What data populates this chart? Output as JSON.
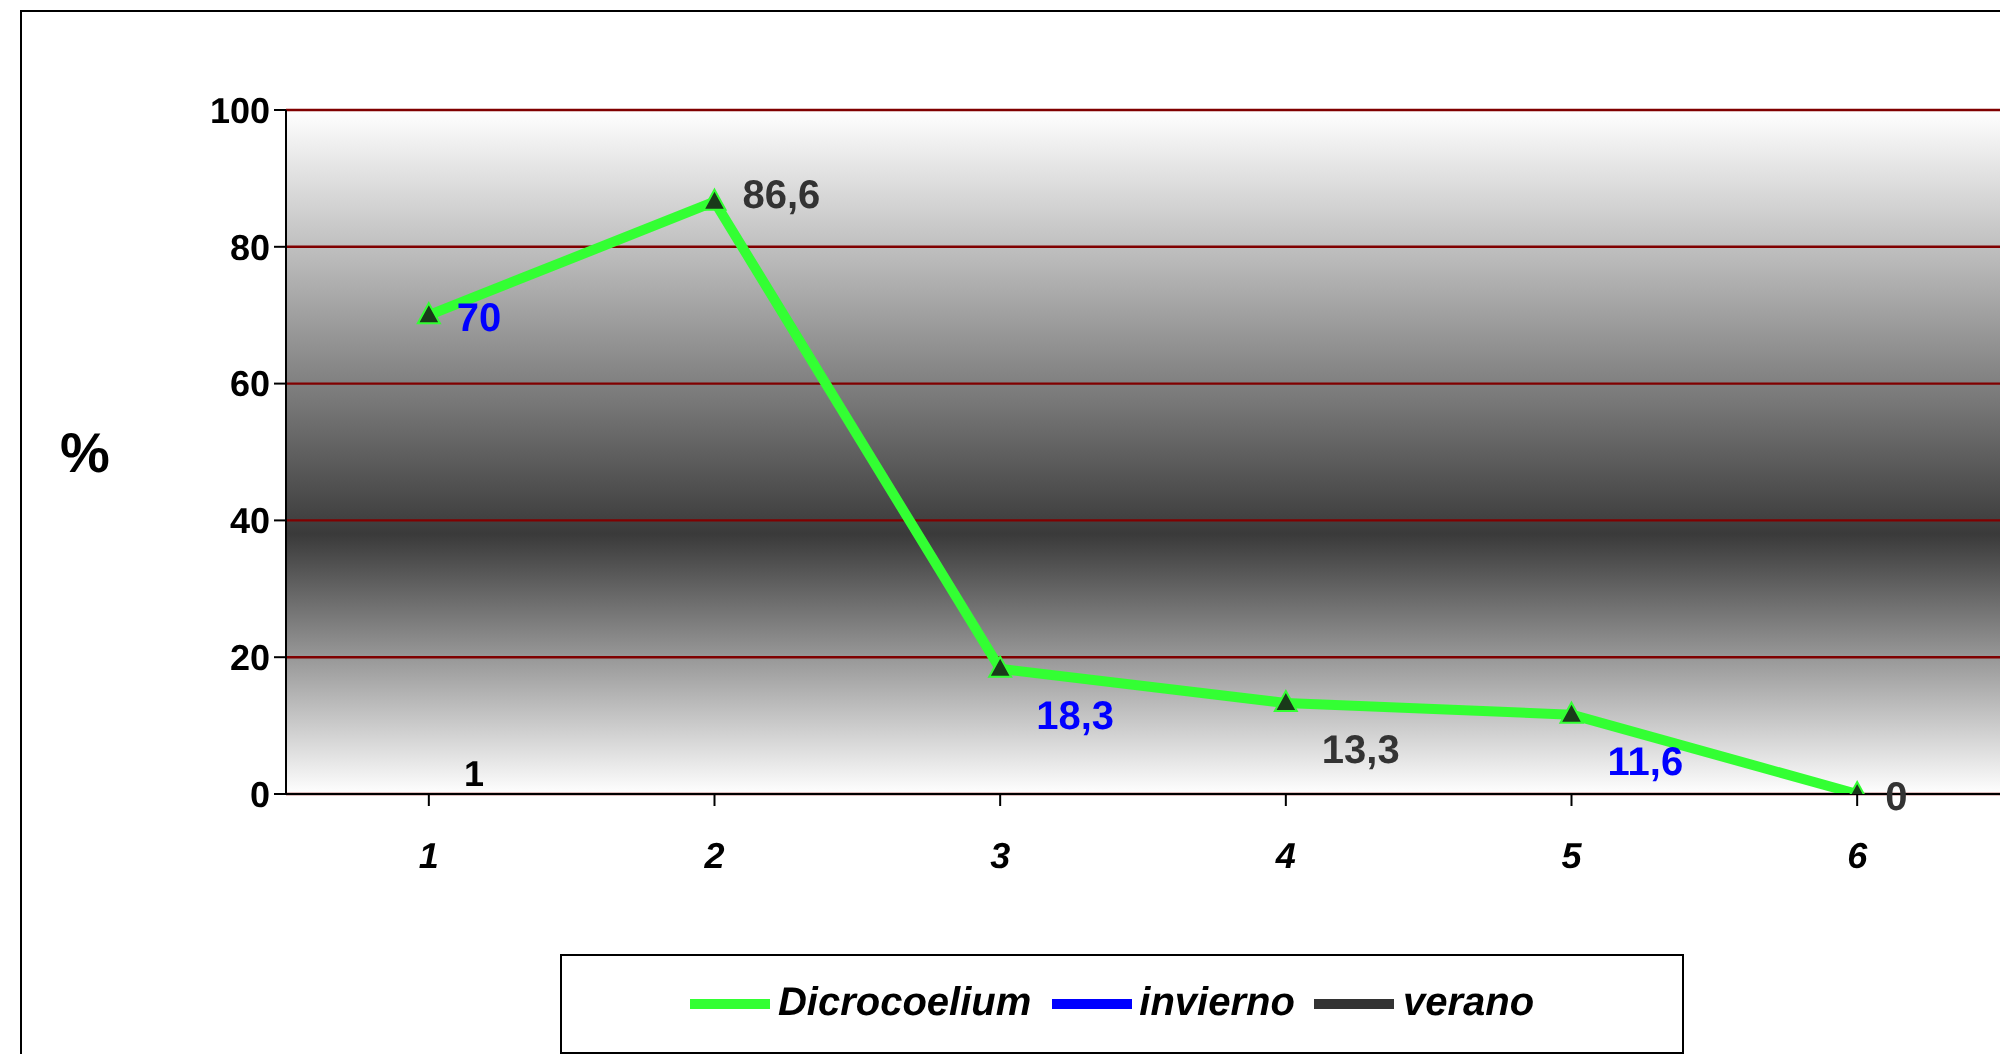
{
  "chart_data": {
    "type": "line",
    "ylabel": "%",
    "categories": [
      "1",
      "2",
      "3",
      "4",
      "5",
      "6"
    ],
    "series": [
      {
        "name": "Dicrocoelium",
        "color": "#33ff33",
        "values": [
          70,
          86.6,
          18.3,
          13.3,
          11.6,
          0
        ],
        "value_labels": [
          "70",
          "86,6",
          "18,3",
          "13,3",
          "11,6",
          "0"
        ]
      },
      {
        "name": "invierno",
        "color": "#0000ff",
        "values": [
          null,
          null,
          null,
          null,
          null,
          null
        ]
      },
      {
        "name": "verano",
        "color": "#333333",
        "values": [
          null,
          null,
          null,
          null,
          null,
          null
        ]
      }
    ],
    "ylim": [
      0,
      100
    ],
    "yticks": [
      0,
      20,
      40,
      60,
      80,
      100
    ],
    "grid": "y",
    "legend": "bottom",
    "marker": "triangle",
    "line_style": "solid",
    "annotations": [
      "1"
    ]
  }
}
